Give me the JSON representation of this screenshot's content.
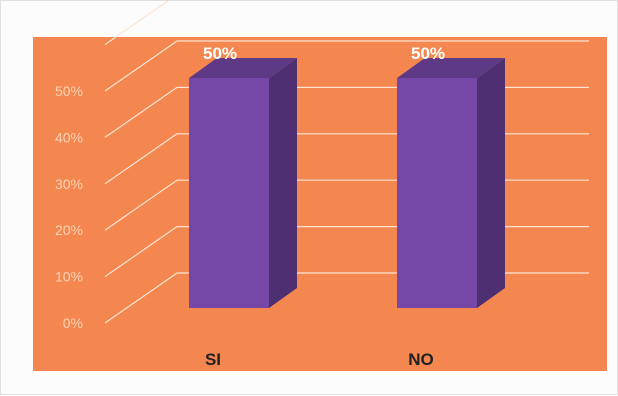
{
  "chart_data": {
    "type": "bar",
    "categories": [
      "SI",
      "NO"
    ],
    "values": [
      50,
      50
    ],
    "data_labels": [
      "50%",
      "50%"
    ],
    "y_ticks": [
      {
        "value": 0,
        "label": "0%"
      },
      {
        "value": 10,
        "label": "10%"
      },
      {
        "value": 20,
        "label": "20%"
      },
      {
        "value": 30,
        "label": "30%"
      },
      {
        "value": 40,
        "label": "40%"
      },
      {
        "value": 50,
        "label": "50%"
      }
    ],
    "ylim": [
      0,
      50
    ],
    "grid": true,
    "three_d": true,
    "title": "",
    "xlabel": "",
    "ylabel": ""
  },
  "colors": {
    "plot_background": "#f4874f",
    "bar_front": "#7548a8",
    "bar_side": "#4e2f72",
    "bar_top": "#5e3a86",
    "gridline": "#ffe4d2",
    "tick_text": "#fbd3b7",
    "category_text": "#222222",
    "data_label_text": "#ffffff"
  }
}
